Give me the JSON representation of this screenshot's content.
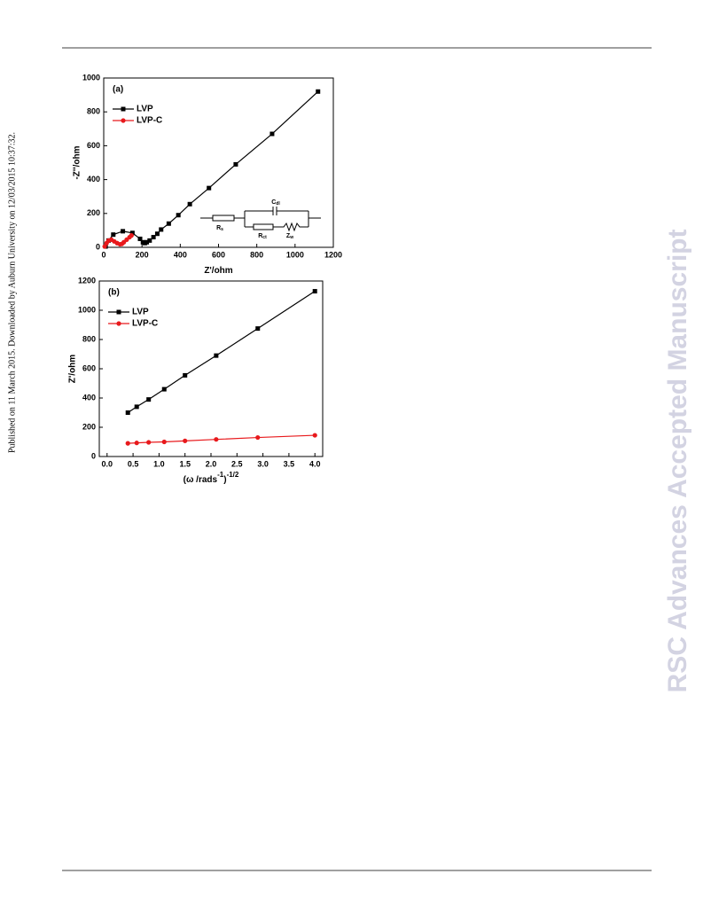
{
  "side_note": "Published on 11 March 2015. Downloaded by Auburn University on 12/03/2015 10:37:32.",
  "watermark": "RSC Advances Accepted Manuscript",
  "chart_data": [
    {
      "type": "line",
      "panel_label": "(a)",
      "xlabel": [
        "Z'/ohm"
      ],
      "ylabel": "-Z''/ohm",
      "xlim": [
        0,
        1200
      ],
      "ylim": [
        0,
        1000
      ],
      "xticks": [
        0,
        200,
        400,
        600,
        800,
        1000,
        1200
      ],
      "yticks": [
        0,
        200,
        400,
        600,
        800,
        1000
      ],
      "legend": "upper left",
      "series": [
        {
          "name": "LVP",
          "color": "#000000",
          "marker": "square",
          "x": [
            10,
            25,
            50,
            100,
            150,
            190,
            205,
            215,
            225,
            240,
            260,
            280,
            300,
            340,
            390,
            450,
            550,
            690,
            880,
            1120
          ],
          "values": [
            5,
            40,
            75,
            95,
            85,
            50,
            30,
            25,
            30,
            40,
            60,
            80,
            105,
            140,
            190,
            255,
            350,
            490,
            670,
            920
          ]
        },
        {
          "name": "LVP-C",
          "color": "#e8191c",
          "marker": "circle",
          "x": [
            5,
            15,
            25,
            40,
            55,
            70,
            85,
            95,
            105,
            120,
            135,
            145
          ],
          "values": [
            5,
            25,
            40,
            45,
            35,
            25,
            18,
            20,
            30,
            45,
            60,
            70
          ]
        }
      ],
      "inset": {
        "labels": [
          [
            "R",
            "s"
          ],
          [
            "C",
            "dl"
          ],
          [
            "R",
            "ct"
          ],
          [
            "Z",
            "w"
          ]
        ]
      }
    },
    {
      "type": "line",
      "panel_label": "(b)",
      "xlabel": [
        "(ω /rads",
        "-1",
        ")",
        "-1/2"
      ],
      "ylabel": "Z'/ohm",
      "xlim": [
        -0.15,
        4.15
      ],
      "ylim": [
        0,
        1200
      ],
      "xticks": [
        {
          "value": 0,
          "label": "0.0"
        },
        0.5,
        {
          "value": 1,
          "label": "1.0"
        },
        1.5,
        {
          "value": 2,
          "label": "2.0"
        },
        2.5,
        {
          "value": 3,
          "label": "3.0"
        },
        3.5,
        {
          "value": 4,
          "label": "4.0"
        }
      ],
      "yticks": [
        0,
        200,
        400,
        600,
        800,
        1000,
        1200
      ],
      "legend": "upper left",
      "series": [
        {
          "name": "LVP",
          "color": "#000000",
          "marker": "square",
          "x": [
            0.4,
            0.57,
            0.8,
            1.1,
            1.5,
            2.1,
            2.9,
            4.0
          ],
          "values": [
            300,
            340,
            390,
            460,
            555,
            690,
            875,
            1130
          ]
        },
        {
          "name": "LVP-C",
          "color": "#e8191c",
          "marker": "circle",
          "x": [
            0.4,
            0.57,
            0.8,
            1.1,
            1.5,
            2.1,
            2.9,
            4.0
          ],
          "values": [
            90,
            93,
            97,
            100,
            107,
            117,
            130,
            145
          ]
        }
      ]
    }
  ]
}
